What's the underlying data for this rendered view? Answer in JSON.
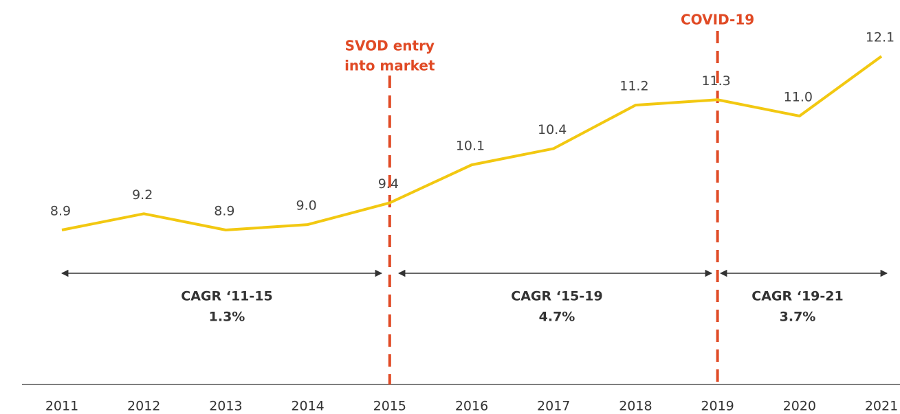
{
  "chart_data": {
    "type": "line",
    "categories": [
      "2011",
      "2012",
      "2013",
      "2014",
      "2015",
      "2016",
      "2017",
      "2018",
      "2019",
      "2020",
      "2021"
    ],
    "values": [
      8.9,
      9.2,
      8.9,
      9.0,
      9.4,
      10.1,
      10.4,
      11.2,
      11.3,
      11.0,
      12.1
    ],
    "value_labels": [
      "8.9",
      "9.2",
      "8.9",
      "9.0",
      "9.4",
      "10.1",
      "10.4",
      "11.2",
      "11.3",
      "11.0",
      "12.1"
    ],
    "color": "#f2c811",
    "events": [
      [
        "SVOD entry",
        "into market"
      ],
      [
        "COVID-19"
      ]
    ],
    "periods": [
      [
        "CAGR ‘11-15",
        "1.3%"
      ],
      [
        "CAGR ‘15-19",
        "4.7%"
      ],
      [
        "CAGR ‘19-21",
        "3.7%"
      ]
    ]
  }
}
